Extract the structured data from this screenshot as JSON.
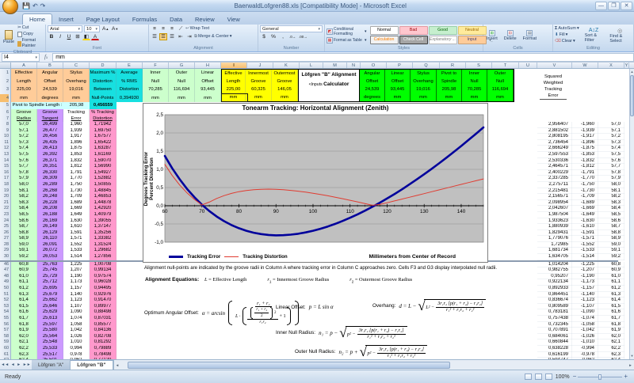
{
  "window": {
    "title": "BaerwaldLofgren88.xls  [Compatibility Mode] - Microsoft Excel"
  },
  "ribbon": {
    "tabs": [
      "Home",
      "Insert",
      "Page Layout",
      "Formulas",
      "Data",
      "Review",
      "View"
    ],
    "active_tab": "Home",
    "clipboard": {
      "label": "Clipboard",
      "paste": "Paste",
      "cut": "Cut",
      "copy": "Copy",
      "format_painter": "Format Painter"
    },
    "font": {
      "label": "Font",
      "family": "Arial",
      "size": "10"
    },
    "alignment": {
      "label": "Alignment",
      "wrap_text": "Wrap Text",
      "merge_center": "Merge & Center"
    },
    "number": {
      "label": "Number",
      "format": "General"
    },
    "styles": {
      "label": "Styles",
      "conditional": "Conditional Formatting",
      "format_as_table": "Format as Table",
      "chips": [
        {
          "label": "Normal",
          "bg": "#FFFFFF",
          "fg": "#000000",
          "border": "#ABABAB"
        },
        {
          "label": "Bad",
          "bg": "#FFC7CE",
          "fg": "#9C0006",
          "border": "#E39AA3"
        },
        {
          "label": "Good",
          "bg": "#C6EFCE",
          "fg": "#006100",
          "border": "#9CCFA9"
        },
        {
          "label": "Neutral",
          "bg": "#FFEB9C",
          "fg": "#9C6500",
          "border": "#E0C96E"
        },
        {
          "label": "Calculation",
          "bg": "#F2F2F2",
          "fg": "#FA7D00",
          "border": "#7F7F7F"
        },
        {
          "label": "Check Cell",
          "bg": "#A5A5A5",
          "fg": "#FFFFFF",
          "border": "#3F3F3F"
        },
        {
          "label": "Explanatory ...",
          "bg": "#FFFFFF",
          "fg": "#7F7F7F",
          "border": "#B7B7B7"
        },
        {
          "label": "Input",
          "bg": "#FFCC99",
          "fg": "#3F3F76",
          "border": "#C8A27A"
        }
      ]
    },
    "cells": {
      "label": "Cells",
      "insert": "Insert",
      "delete": "Delete",
      "format": "Format"
    },
    "editing": {
      "label": "Editing",
      "autosum": "AutoSum",
      "fill": "Fill",
      "clear": "Clear",
      "sort": "Sort & Filter",
      "find": "Find & Select"
    }
  },
  "formula_bar": {
    "name_box": "I4",
    "value": "mm"
  },
  "sheet": {
    "columns": [
      "A",
      "B",
      "C",
      "D",
      "E",
      "F",
      "G",
      "H",
      "I",
      "J",
      "K",
      "L",
      "M",
      "N",
      "O",
      "P",
      "Q",
      "R",
      "S",
      "T",
      "U",
      "V",
      "W",
      "X",
      "Y"
    ],
    "selected_column": "I",
    "selected_row": 4,
    "header_blocks": {
      "outputs_left": [
        {
          "lines": [
            "Effective",
            "Length",
            "225,00",
            "mm"
          ],
          "bg": "#FFCC99"
        },
        {
          "lines": [
            "Angular",
            "Offset",
            "24,539",
            "degrees"
          ],
          "bg": "#FFCC99"
        },
        {
          "lines": [
            "Stylus",
            "Overhang",
            "19,016",
            "mm"
          ],
          "bg": "#FFCC99"
        },
        {
          "lines": [
            "Maximum %",
            "Distortion",
            "Between",
            "Null-Points"
          ],
          "bg": "#17E0E0"
        },
        {
          "lines": [
            "Average",
            "% RMS",
            "Distortion",
            "0,394930"
          ],
          "bg": "#17E0E0"
        },
        {
          "lines": [
            "Inner",
            "Null",
            "70,285",
            "mm"
          ],
          "bg": "#CCFFCC"
        },
        {
          "lines": [
            "Outer",
            "Null",
            "116,694",
            "mm"
          ],
          "bg": "#CCFFCC"
        },
        {
          "lines": [
            "Linear",
            "Offset",
            "93,445",
            "mm"
          ],
          "bg": "#CCFFCC"
        },
        {
          "lines": [
            "Effective",
            "Length",
            "225,00",
            "mm"
          ],
          "bg": "#FFFF00"
        },
        {
          "lines": [
            "Innermost",
            "Groove",
            "60,325",
            "mm"
          ],
          "bg": "#FFFF00"
        },
        {
          "lines": [
            "Outermost",
            "Groove",
            "146,05",
            "mm"
          ],
          "bg": "#FFFF00"
        }
      ],
      "calculator_title": {
        "line1": "Löfgren \"B\" Alignment",
        "line2_small": "<Inputs",
        "line2_bold": "Calculator"
      },
      "inputs_green": [
        {
          "lines": [
            "Angular",
            "Offset",
            "24,539",
            "degrees"
          ]
        },
        {
          "lines": [
            "Linear",
            "Offset",
            "93,445",
            "mm"
          ]
        },
        {
          "lines": [
            "Stylus",
            "Overhang",
            "19,016",
            "mm"
          ]
        },
        {
          "lines": [
            "Pivot to",
            "Spindle",
            "205,98",
            "mm"
          ]
        },
        {
          "lines": [
            "Inner",
            "Null",
            "70,285",
            "mm"
          ]
        },
        {
          "lines": [
            "Outer",
            "Null",
            "116,694",
            "mm"
          ]
        }
      ],
      "green_bg": "#00FF00"
    },
    "row5": {
      "label": "Pivot to Spindle Length :",
      "value": "205,98",
      "max_distortion": "0,456559"
    },
    "table": {
      "col_headers": [
        [
          "Groove",
          "Radius"
        ],
        [
          "Groove",
          "Tangent"
        ],
        [
          "Tracking",
          "Error"
        ],
        [
          "% Tracking",
          "Distortion"
        ]
      ],
      "radius1": [
        "57,0",
        "57,1",
        "57,2",
        "57,3",
        "57,4",
        "57,5",
        "57,6",
        "57,7",
        "57,8",
        "57,9",
        "58,0",
        "58,1",
        "58,2",
        "58,3",
        "58,4",
        "58,5",
        "58,6",
        "58,7",
        "58,8",
        "58,9",
        "59,0",
        "59,1",
        "59,2"
      ],
      "tangent1": [
        "26,499",
        "26,477",
        "26,456",
        "26,435",
        "26,413",
        "26,392",
        "26,371",
        "26,351",
        "26,330",
        "26,309",
        "26,289",
        "26,268",
        "26,248",
        "26,228",
        "26,208",
        "26,188",
        "26,169",
        "26,149",
        "26,129",
        "26,110",
        "26,091",
        "26,072",
        "26,053"
      ],
      "error1": [
        "1,960",
        "1,939",
        "1,917",
        "1,896",
        "1,875",
        "1,853",
        "1,832",
        "1,812",
        "1,791",
        "1,770",
        "1,750",
        "1,730",
        "1,709",
        "1,689",
        "1,669",
        "1,649",
        "1,630",
        "1,610",
        "1,591",
        "1,571",
        "1,552",
        "1,533",
        "1,514"
      ],
      "distortion1": [
        "1,71942",
        "1,69750",
        "1,67577",
        "1,65422",
        "1,63287",
        "1,61169",
        "1,59070",
        "1,56990",
        "1,54927",
        "1,52882",
        "1,50855",
        "1,48845",
        "1,46853",
        "1,44878",
        "1,42920",
        "1,40979",
        "1,39055",
        "1,37147",
        "1,35256",
        "1,33382",
        "1,31524",
        "1,29682",
        "1,27856"
      ],
      "radius2": [
        "60,8",
        "60,9",
        "61,0",
        "61,1",
        "61,2",
        "61,3",
        "61,4",
        "61,5",
        "61,6",
        "61,7",
        "61,8",
        "61,9",
        "62,0",
        "62,1",
        "62,2",
        "62,3",
        "62,4"
      ],
      "tangent2": [
        "25,763",
        "25,745",
        "25,729",
        "25,712",
        "25,695",
        "25,679",
        "25,662",
        "25,646",
        "25,629",
        "25,613",
        "25,597",
        "25,580",
        "25,564",
        "25,548",
        "25,533",
        "25,517",
        "25,501"
      ],
      "error2": [
        "1,225",
        "1,207",
        "1,190",
        "1,173",
        "1,157",
        "1,140",
        "1,123",
        "1,107",
        "1,090",
        "1,074",
        "1,058",
        "1,042",
        "1,026",
        "1,010",
        "0,994",
        "0,978",
        "0,962"
      ],
      "distortion2": [
        "1,00708",
        "0,99134",
        "0,97574",
        "0,96028",
        "0,94495",
        "0,92976",
        "0,91470",
        "0,89977",
        "0,88498",
        "0,87031",
        "0,85577",
        "0,84136",
        "0,82708",
        "0,81292",
        "0,79889",
        "0,78498",
        "0,77120"
      ]
    },
    "right_table": {
      "header": [
        "Squared",
        "Weighted",
        "Tracking",
        "Error"
      ],
      "squared1": [
        "2,956407",
        "2,881502",
        "2,808195",
        "2,736454",
        "2,666249",
        "2,597553",
        "2,530336",
        "2,464571",
        "2,400229",
        "2,337285",
        "2,275711",
        "2,215481",
        "2,156571",
        "2,098954",
        "2,042607",
        "1,987504",
        "1,933623",
        "1,880939",
        "1,829431",
        "1,779076",
        "1,72985",
        "1,681734",
        "1,634705"
      ],
      "squared2": [
        "1,014204",
        "0,982755",
        "0,95207",
        "0,922134",
        "0,892933",
        "0,864451",
        "0,836674",
        "0,809589",
        "0,783181",
        "0,757438",
        "0,732345",
        "0,707891",
        "0,684061",
        "0,660844",
        "0,638228",
        "0,616199",
        "0,594747"
      ]
    },
    "rows": {
      "block1_first": 1,
      "block1_data_first": 8,
      "block1_data_last": 30,
      "block2_data_first": 46,
      "block2_data_last": 62
    }
  },
  "chart_data": {
    "type": "line",
    "title": "Tonearm Tracking:  Horizontal Alignment (Zenith)",
    "xlabel": "Millimeters from  Center  of Record",
    "ylabel_lines": [
      "Degrees Tracking Error",
      "Percent Distortion"
    ],
    "xlim": [
      60,
      146
    ],
    "ylim": [
      -1.0,
      2.5
    ],
    "x_ticks": [
      60,
      70,
      80,
      90,
      100,
      110,
      120,
      130,
      140
    ],
    "y_ticks": [
      {
        "v": 2.5,
        "t": "2,5"
      },
      {
        "v": 2.0,
        "t": "2,0"
      },
      {
        "v": 1.5,
        "t": "1,5"
      },
      {
        "v": 1.0,
        "t": "1,0"
      },
      {
        "v": 0.5,
        "t": "0,5"
      },
      {
        "v": 0.0,
        "t": "0,0"
      },
      {
        "v": -0.5,
        "t": "-0,5"
      },
      {
        "v": -1.0,
        "t": "-1,0"
      }
    ],
    "plot_bg": "#C0C0C0",
    "grid_color": "#909090",
    "legend_position": "bottom",
    "series": [
      {
        "name": "Tracking Error",
        "color": "#00009B",
        "width": 2.6,
        "x": [
          60,
          62,
          64,
          66,
          68,
          70,
          72,
          74,
          76,
          78,
          80,
          82,
          84,
          86,
          88,
          90,
          92,
          94,
          96,
          98,
          100,
          102,
          104,
          106,
          108,
          110,
          112,
          114,
          116,
          118,
          120,
          122,
          124,
          126,
          128,
          130,
          132,
          134,
          136,
          138,
          140,
          142,
          144,
          146
        ],
        "y": [
          1.367,
          1.029,
          0.729,
          0.464,
          0.232,
          0.03,
          -0.145,
          -0.296,
          -0.424,
          -0.531,
          -0.618,
          -0.687,
          -0.741,
          -0.779,
          -0.802,
          -0.812,
          -0.809,
          -0.794,
          -0.769,
          -0.733,
          -0.687,
          -0.632,
          -0.569,
          -0.497,
          -0.418,
          -0.331,
          -0.237,
          -0.137,
          -0.031,
          0.081,
          0.199,
          0.322,
          0.451,
          0.584,
          0.723,
          0.866,
          1.013,
          1.164,
          1.319,
          1.479,
          1.642,
          1.809,
          1.979,
          2.153
        ]
      },
      {
        "name": "Tracking Distortion",
        "color": "#E03C31",
        "width": 1,
        "x": [
          60,
          62,
          64,
          66,
          68,
          70,
          72,
          74,
          76,
          78,
          80,
          82,
          84,
          86,
          88,
          90,
          92,
          94,
          96,
          98,
          100,
          102,
          104,
          106,
          108,
          110,
          112,
          114,
          116,
          118,
          120,
          122,
          124,
          126,
          128,
          130,
          132,
          134,
          136,
          138,
          140,
          142,
          144,
          146
        ],
        "y": [
          1.139,
          0.83,
          0.57,
          0.352,
          0.171,
          0.021,
          0.101,
          0.2,
          0.279,
          0.34,
          0.386,
          0.419,
          0.441,
          0.453,
          0.456,
          0.451,
          0.44,
          0.422,
          0.401,
          0.374,
          0.344,
          0.31,
          0.274,
          0.234,
          0.194,
          0.15,
          0.106,
          0.06,
          0.013,
          0.034,
          0.083,
          0.132,
          0.182,
          0.232,
          0.282,
          0.333,
          0.384,
          0.434,
          0.485,
          0.536,
          0.586,
          0.637,
          0.687,
          0.737
        ]
      }
    ],
    "annotations": {
      "inner_null": 70.285,
      "outer_null": 116.694
    }
  },
  "equations": {
    "note": "Alignment null-points are indicated by the groove radii in Column A where tracking error in Column C approaches zero.  Cells F3 and G3 display interpolated null radii.",
    "heading": "Alignment Equations:",
    "defs": [
      {
        "sym": "L",
        "sub": "",
        "text": "=  Effective  Length"
      },
      {
        "sym": "r",
        "sub": "1",
        "text": "=  Innermost  Groove  Radius"
      },
      {
        "sym": "r",
        "sub": "2",
        "text": "=  Outermost  Groove  Radius"
      }
    ],
    "angular": {
      "label": "Optimum Angular Offset:",
      "alpha": "α  =  arcsin",
      "num": "r₁ + r₂",
      "den_l": "L ·",
      "nested_num": "r₁ + r₂",
      "nested_den": "2",
      "nested_sup": "2",
      "inner_den": "r₁r₂",
      "plus_one": "+ 1"
    },
    "linear": {
      "label": "Linear Offset:",
      "formula": "p  =  L sin α"
    },
    "radicals": [
      {
        "label": "Overhang:",
        "lhs": "d = L −",
        "pre": "L² −",
        "num": "3r₁r₂ [p(r₁ + r₂) − r₁r₂]",
        "den": "r₁² + r₁r₂ + r₂²"
      },
      {
        "label": "Inner Null Radius:",
        "lhs": "n₁ = p −",
        "pre": "p² −",
        "num": "3r₁r₂ [p(r₁ + r₂) − r₁r₂]",
        "den": "r₁² + r₁r₂ + r₂²"
      },
      {
        "label": "Outer Null Radius:",
        "lhs": "n₂ = p +",
        "pre": "p² −",
        "num": "3r₁r₂ [p(r₁ + r₂) − r₁r₂]",
        "den": "r₁² + r₁r₂ + r₂²"
      }
    ]
  },
  "tabs_bar": {
    "sheets": [
      "Löfgren \"A\"",
      "Löfgren \"B\""
    ],
    "active_index": 1
  },
  "status_bar": {
    "mode": "Ready",
    "zoom": "100%"
  }
}
